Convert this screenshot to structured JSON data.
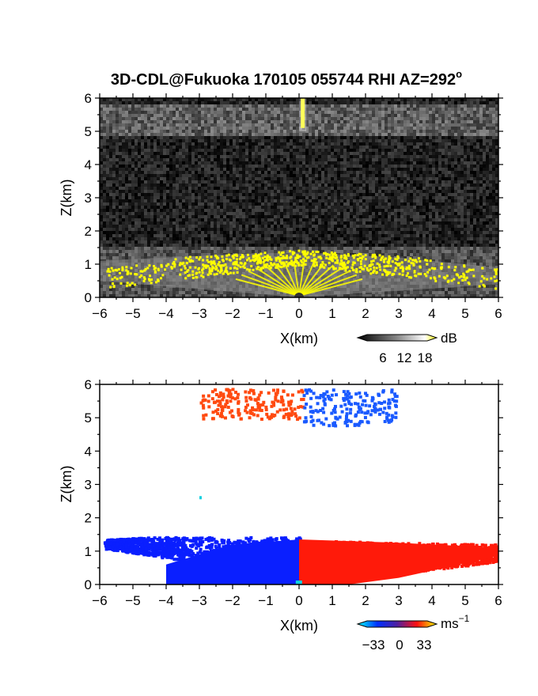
{
  "title": "3D-CDL@Fukuoka 170105 055744 RHI AZ=292",
  "title_suffix": "o",
  "chart_data": [
    {
      "type": "heatmap",
      "panel": "top",
      "xlabel": "X(km)",
      "ylabel": "Z(km)",
      "xlim": [
        -6,
        6
      ],
      "ylim": [
        0,
        6
      ],
      "x_ticks": [
        "−6",
        "−5",
        "−4",
        "−3",
        "−2",
        "−1",
        "0",
        "1",
        "2",
        "3",
        "4",
        "5",
        "6"
      ],
      "y_ticks": [
        "0",
        "1",
        "2",
        "3",
        "4",
        "5",
        "6"
      ],
      "colorbar": {
        "unit": "dB",
        "ticks": [
          "6",
          "12",
          "18"
        ],
        "range": [
          0,
          20
        ]
      },
      "layers": {
        "clear_air_noise_top_km": 6,
        "cloud_layer_z_km": [
          4.9,
          5.9
        ],
        "yellow_vertical_beam_x_km": 0.1,
        "yellow_boundary_layer_top_km": 1.45,
        "yellow_boundary_layer_x_km": [
          -5.8,
          6
        ]
      },
      "colors": {
        "high": "#ffff00",
        "mid": "#cccccc",
        "low": "#1a1a1a"
      }
    },
    {
      "type": "heatmap",
      "panel": "bottom",
      "xlabel": "X(km)",
      "ylabel": "Z(km)",
      "xlim": [
        -6,
        6
      ],
      "ylim": [
        0,
        6
      ],
      "x_ticks": [
        "−6",
        "−5",
        "−4",
        "−3",
        "−2",
        "−1",
        "0",
        "1",
        "2",
        "3",
        "4",
        "5",
        "6"
      ],
      "y_ticks": [
        "0",
        "1",
        "2",
        "3",
        "4",
        "5",
        "6"
      ],
      "colorbar": {
        "unit": "ms",
        "unit_exp": "−1",
        "ticks": [
          "−33",
          "0",
          "33"
        ],
        "range": [
          -33,
          33
        ]
      },
      "regions": [
        {
          "label": "toward",
          "x_km": [
            -5.9,
            0
          ],
          "z_km": [
            0,
            1.45
          ],
          "color": "#0a1fff"
        },
        {
          "label": "away",
          "x_km": [
            0,
            6
          ],
          "z_km": [
            0,
            1.35
          ],
          "color": "#ff1a0a"
        },
        {
          "label": "cloud-away",
          "x_km": [
            -3,
            0.1
          ],
          "z_km": [
            5,
            5.9
          ],
          "color": "#ff4a10"
        },
        {
          "label": "cloud-toward",
          "x_km": [
            0.1,
            2.9
          ],
          "z_km": [
            4.8,
            5.9
          ],
          "color": "#1a5aff"
        }
      ]
    }
  ]
}
